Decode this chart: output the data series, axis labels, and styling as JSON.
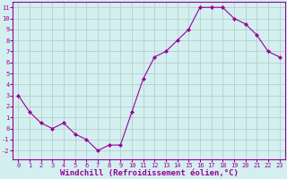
{
  "x": [
    0,
    1,
    2,
    3,
    4,
    5,
    6,
    7,
    8,
    9,
    10,
    11,
    12,
    13,
    14,
    15,
    16,
    17,
    18,
    19,
    20,
    21,
    22,
    23
  ],
  "y": [
    3,
    1.5,
    0.5,
    0,
    0.5,
    -0.5,
    -1,
    -2,
    -1.5,
    -1.5,
    1.5,
    4.5,
    6.5,
    7,
    8,
    9,
    11,
    11,
    11,
    10,
    9.5,
    8.5,
    7,
    6.5
  ],
  "line_color": "#990099",
  "marker": "D",
  "marker_size": 2,
  "bg_color": "#d4efef",
  "grid_color": "#b0c8c8",
  "xlabel": "Windchill (Refroidissement éolien,°C)",
  "xlabel_color": "#990099",
  "ylabel_ticks": [
    -2,
    -1,
    0,
    1,
    2,
    3,
    4,
    5,
    6,
    7,
    8,
    9,
    10,
    11
  ],
  "xlim": [
    -0.5,
    23.5
  ],
  "ylim": [
    -2.8,
    11.5
  ],
  "xticks": [
    0,
    1,
    2,
    3,
    4,
    5,
    6,
    7,
    8,
    9,
    10,
    11,
    12,
    13,
    14,
    15,
    16,
    17,
    18,
    19,
    20,
    21,
    22,
    23
  ],
  "tick_label_color": "#990099",
  "spine_color": "#990099",
  "tick_fontsize": 5,
  "xlabel_fontsize": 6.5
}
